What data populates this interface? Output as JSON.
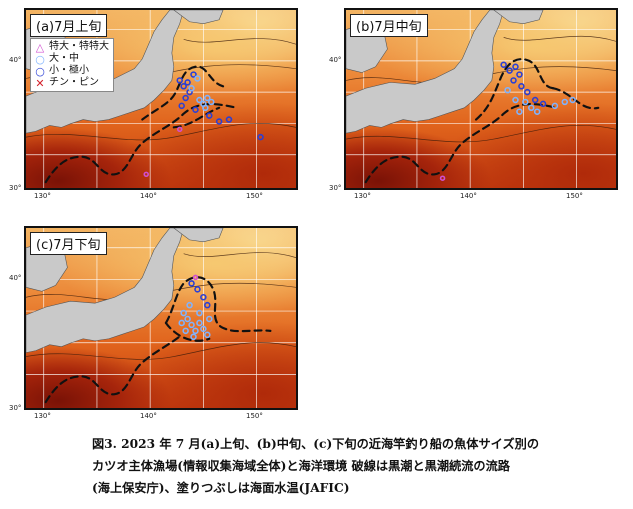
{
  "panels": [
    {
      "id": "a",
      "label": "(a)7月上旬"
    },
    {
      "id": "b",
      "label": "(b)7月中旬"
    },
    {
      "id": "c",
      "label": "(c)7月下旬"
    }
  ],
  "legend": {
    "items": [
      {
        "symbol": "triangle",
        "label": "特大・特特大",
        "color": "#d04fd0"
      },
      {
        "symbol": "circle-light",
        "label": "大・中",
        "color": "#7fb3ff"
      },
      {
        "symbol": "circle-dark",
        "label": "小・極小",
        "color": "#2a3fd6"
      },
      {
        "symbol": "cross",
        "label": "チン・ピン",
        "color": "#d4202a"
      }
    ]
  },
  "axes": {
    "lon_ticks": [
      "130°",
      "140°",
      "150°"
    ],
    "lat_ticks": [
      "40°",
      "30°"
    ]
  },
  "caption": {
    "line1": "図3.  2023 年 7 月(a)上旬、(b)中旬、(c)下旬の近海竿釣り船の魚体サイズ別の",
    "line2": "カツオ主体漁場(情報収集海域全体)と海洋環境  破線は黒潮と黒潮続流の流路",
    "line3": "(海上保安庁)、塗りつぶしは海面水温(JAFIC)"
  },
  "colors": {
    "sst_warm": "#a5240b",
    "sst_cool": "#f6c870",
    "land": "#c9c9c9",
    "marker_small": "#2a3fd6",
    "marker_mid": "#7fb3ff",
    "marker_large": "#d04fd0",
    "marker_chin": "#d4202a"
  }
}
